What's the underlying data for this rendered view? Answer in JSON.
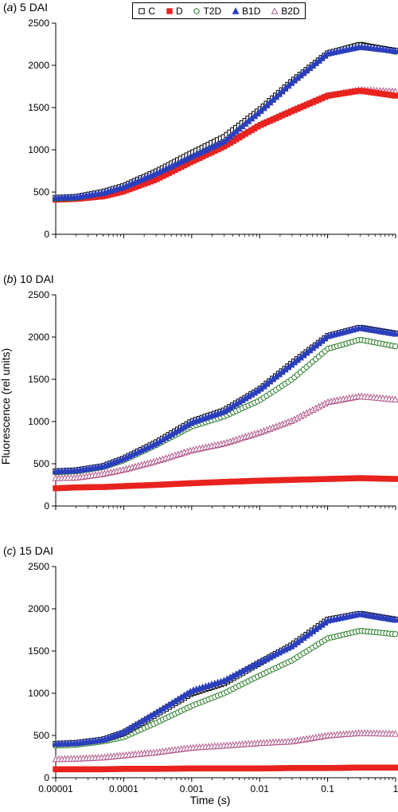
{
  "figure": {
    "ylabel": "Fluorescence (rel units)",
    "xlabel": "Time (s)"
  },
  "legend": {
    "position": "top-center",
    "items": [
      {
        "label": "C",
        "marker": "open-square",
        "color": "#000000"
      },
      {
        "label": "D",
        "marker": "filled-square",
        "color": "#e8231e"
      },
      {
        "label": "T2D",
        "marker": "open-circle",
        "color": "#2a7d2a"
      },
      {
        "label": "B1D",
        "marker": "filled-triangle",
        "color": "#2b3fbd"
      },
      {
        "label": "B2D",
        "marker": "open-triangle",
        "color": "#b25a8c"
      }
    ]
  },
  "chart_data": [
    {
      "type": "scatter",
      "panel_label": "a",
      "title": "5 DAI",
      "xscale": "log",
      "xlim": [
        1e-05,
        1
      ],
      "ylim": [
        0,
        2500
      ],
      "xticks": [
        "0.00001",
        "0.0001",
        "0.001",
        "0.01",
        "0.1",
        "1"
      ],
      "yticks": [
        "0",
        "500",
        "1000",
        "1500",
        "2000",
        "2500"
      ],
      "grid": false,
      "series": [
        {
          "name": "C",
          "points": [
            [
              1e-05,
              430
            ],
            [
              2e-05,
              440
            ],
            [
              5e-05,
              500
            ],
            [
              0.0001,
              570
            ],
            [
              0.0003,
              740
            ],
            [
              0.001,
              960
            ],
            [
              0.003,
              1150
            ],
            [
              0.01,
              1470
            ],
            [
              0.03,
              1810
            ],
            [
              0.1,
              2140
            ],
            [
              0.3,
              2240
            ],
            [
              1,
              2170
            ]
          ]
        },
        {
          "name": "D",
          "points": [
            [
              1e-05,
              410
            ],
            [
              2e-05,
              420
            ],
            [
              5e-05,
              450
            ],
            [
              0.0001,
              510
            ],
            [
              0.0003,
              650
            ],
            [
              0.001,
              860
            ],
            [
              0.003,
              1040
            ],
            [
              0.01,
              1290
            ],
            [
              0.03,
              1460
            ],
            [
              0.1,
              1640
            ],
            [
              0.3,
              1700
            ],
            [
              1,
              1640
            ]
          ]
        },
        {
          "name": "T2D",
          "points": [
            [
              1e-05,
              420
            ],
            [
              2e-05,
              430
            ],
            [
              5e-05,
              490
            ],
            [
              0.0001,
              560
            ],
            [
              0.0003,
              720
            ],
            [
              0.001,
              940
            ],
            [
              0.003,
              1140
            ],
            [
              0.01,
              1460
            ],
            [
              0.03,
              1800
            ],
            [
              0.1,
              2140
            ],
            [
              0.3,
              2250
            ],
            [
              1,
              2160
            ]
          ]
        },
        {
          "name": "B1D",
          "points": [
            [
              1e-05,
              430
            ],
            [
              2e-05,
              440
            ],
            [
              5e-05,
              490
            ],
            [
              0.0001,
              560
            ],
            [
              0.0003,
              720
            ],
            [
              0.001,
              920
            ],
            [
              0.003,
              1100
            ],
            [
              0.01,
              1450
            ],
            [
              0.03,
              1800
            ],
            [
              0.1,
              2140
            ],
            [
              0.3,
              2220
            ],
            [
              1,
              2170
            ]
          ]
        },
        {
          "name": "B2D",
          "points": [
            [
              1e-05,
              410
            ],
            [
              2e-05,
              420
            ],
            [
              5e-05,
              450
            ],
            [
              0.0001,
              510
            ],
            [
              0.0003,
              650
            ],
            [
              0.001,
              870
            ],
            [
              0.003,
              1050
            ],
            [
              0.01,
              1290
            ],
            [
              0.03,
              1460
            ],
            [
              0.1,
              1640
            ],
            [
              0.3,
              1710
            ],
            [
              1,
              1690
            ]
          ]
        }
      ]
    },
    {
      "type": "scatter",
      "panel_label": "b",
      "title": "10 DAI",
      "xscale": "log",
      "xlim": [
        1e-05,
        1
      ],
      "ylim": [
        0,
        2500
      ],
      "xticks": [
        "0.00001",
        "0.0001",
        "0.001",
        "0.01",
        "0.1",
        "1"
      ],
      "yticks": [
        "0",
        "500",
        "1000",
        "1500",
        "2000",
        "2500"
      ],
      "grid": false,
      "series": [
        {
          "name": "C",
          "points": [
            [
              1e-05,
              410
            ],
            [
              2e-05,
              420
            ],
            [
              5e-05,
              470
            ],
            [
              0.0001,
              560
            ],
            [
              0.0003,
              750
            ],
            [
              0.001,
              1000
            ],
            [
              0.003,
              1130
            ],
            [
              0.01,
              1380
            ],
            [
              0.03,
              1690
            ],
            [
              0.1,
              2010
            ],
            [
              0.3,
              2110
            ],
            [
              1,
              2040
            ]
          ]
        },
        {
          "name": "D",
          "points": [
            [
              1e-05,
              210
            ],
            [
              2e-05,
              220
            ],
            [
              5e-05,
              225
            ],
            [
              0.0001,
              235
            ],
            [
              0.0003,
              250
            ],
            [
              0.001,
              270
            ],
            [
              0.003,
              285
            ],
            [
              0.01,
              300
            ],
            [
              0.03,
              310
            ],
            [
              0.1,
              320
            ],
            [
              0.3,
              330
            ],
            [
              1,
              320
            ]
          ]
        },
        {
          "name": "T2D",
          "points": [
            [
              1e-05,
              400
            ],
            [
              2e-05,
              410
            ],
            [
              5e-05,
              460
            ],
            [
              0.0001,
              540
            ],
            [
              0.0003,
              720
            ],
            [
              0.001,
              940
            ],
            [
              0.003,
              1060
            ],
            [
              0.01,
              1250
            ],
            [
              0.03,
              1500
            ],
            [
              0.1,
              1860
            ],
            [
              0.3,
              1970
            ],
            [
              1,
              1890
            ]
          ]
        },
        {
          "name": "B1D",
          "points": [
            [
              1e-05,
              410
            ],
            [
              2e-05,
              420
            ],
            [
              5e-05,
              470
            ],
            [
              0.0001,
              560
            ],
            [
              0.0003,
              740
            ],
            [
              0.001,
              990
            ],
            [
              0.003,
              1120
            ],
            [
              0.01,
              1380
            ],
            [
              0.03,
              1680
            ],
            [
              0.1,
              2010
            ],
            [
              0.3,
              2110
            ],
            [
              1,
              2040
            ]
          ]
        },
        {
          "name": "B2D",
          "points": [
            [
              1e-05,
              330
            ],
            [
              2e-05,
              335
            ],
            [
              5e-05,
              380
            ],
            [
              0.0001,
              430
            ],
            [
              0.0003,
              530
            ],
            [
              0.001,
              660
            ],
            [
              0.003,
              740
            ],
            [
              0.01,
              870
            ],
            [
              0.03,
              1010
            ],
            [
              0.1,
              1230
            ],
            [
              0.3,
              1300
            ],
            [
              1,
              1260
            ]
          ]
        }
      ]
    },
    {
      "type": "scatter",
      "panel_label": "c",
      "title": "15 DAI",
      "xscale": "log",
      "xlim": [
        1e-05,
        1
      ],
      "ylim": [
        0,
        2500
      ],
      "xticks": [
        "0.00001",
        "0.0001",
        "0.001",
        "0.01",
        "0.1",
        "1"
      ],
      "yticks": [
        "0",
        "500",
        "1000",
        "1500",
        "2000",
        "2500"
      ],
      "grid": false,
      "series": [
        {
          "name": "C",
          "points": [
            [
              1e-05,
              400
            ],
            [
              2e-05,
              410
            ],
            [
              5e-05,
              450
            ],
            [
              0.0001,
              530
            ],
            [
              0.0003,
              750
            ],
            [
              0.001,
              1000
            ],
            [
              0.003,
              1120
            ],
            [
              0.01,
              1360
            ],
            [
              0.03,
              1570
            ],
            [
              0.1,
              1870
            ],
            [
              0.3,
              1940
            ],
            [
              1,
              1870
            ]
          ]
        },
        {
          "name": "D",
          "points": [
            [
              1e-05,
              100
            ],
            [
              2e-05,
              100
            ],
            [
              5e-05,
              100
            ],
            [
              0.0001,
              105
            ],
            [
              0.0003,
              105
            ],
            [
              0.001,
              110
            ],
            [
              0.003,
              110
            ],
            [
              0.01,
              110
            ],
            [
              0.03,
              115
            ],
            [
              0.1,
              115
            ],
            [
              0.3,
              120
            ],
            [
              1,
              120
            ]
          ]
        },
        {
          "name": "T2D",
          "points": [
            [
              1e-05,
              380
            ],
            [
              2e-05,
              390
            ],
            [
              5e-05,
              430
            ],
            [
              0.0001,
              480
            ],
            [
              0.0003,
              650
            ],
            [
              0.001,
              850
            ],
            [
              0.003,
              1000
            ],
            [
              0.01,
              1210
            ],
            [
              0.03,
              1390
            ],
            [
              0.1,
              1650
            ],
            [
              0.3,
              1740
            ],
            [
              1,
              1700
            ]
          ]
        },
        {
          "name": "B1D",
          "points": [
            [
              1e-05,
              400
            ],
            [
              2e-05,
              410
            ],
            [
              5e-05,
              450
            ],
            [
              0.0001,
              540
            ],
            [
              0.0003,
              770
            ],
            [
              0.001,
              1030
            ],
            [
              0.003,
              1150
            ],
            [
              0.01,
              1370
            ],
            [
              0.03,
              1560
            ],
            [
              0.1,
              1860
            ],
            [
              0.3,
              1940
            ],
            [
              1,
              1870
            ]
          ]
        },
        {
          "name": "B2D",
          "points": [
            [
              1e-05,
              220
            ],
            [
              2e-05,
              225
            ],
            [
              5e-05,
              240
            ],
            [
              0.0001,
              265
            ],
            [
              0.0003,
              300
            ],
            [
              0.001,
              355
            ],
            [
              0.003,
              380
            ],
            [
              0.01,
              410
            ],
            [
              0.03,
              430
            ],
            [
              0.1,
              500
            ],
            [
              0.3,
              530
            ],
            [
              1,
              520
            ]
          ]
        }
      ]
    }
  ]
}
